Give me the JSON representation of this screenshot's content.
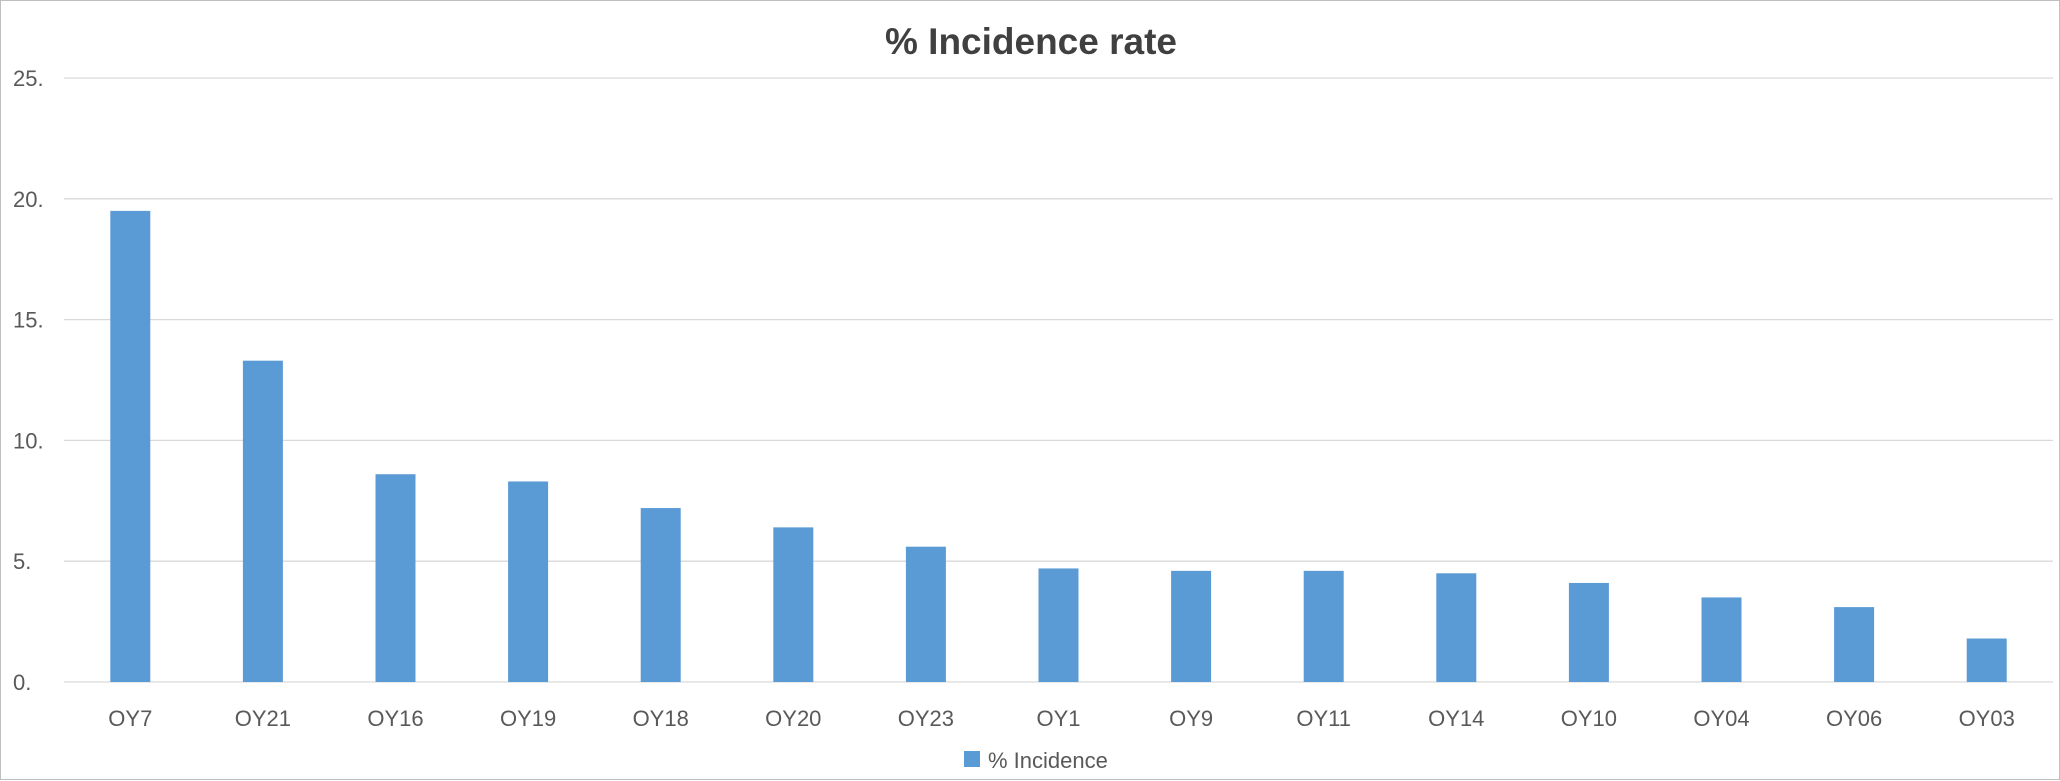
{
  "chart_data": {
    "type": "bar",
    "title": "% Incidence rate",
    "xlabel": "",
    "ylabel": "",
    "categories": [
      "OY7",
      "OY21",
      "OY16",
      "OY19",
      "OY18",
      "OY20",
      "OY23",
      "OY1",
      "OY9",
      "OY11",
      "OY14",
      "OY10",
      "OY04",
      "OY06",
      "OY03"
    ],
    "series": [
      {
        "name": "% Incidence",
        "color": "#5b9bd5",
        "values": [
          19.5,
          13.3,
          8.6,
          8.3,
          7.2,
          6.4,
          5.6,
          4.7,
          4.6,
          4.6,
          4.5,
          4.1,
          3.5,
          3.1,
          1.8
        ]
      }
    ],
    "ylim": [
      0,
      25
    ],
    "yticks": [
      0,
      5,
      10,
      15,
      20,
      25
    ],
    "ytick_labels": [
      "0.",
      "5.",
      "10.",
      "15.",
      "20.",
      "25."
    ],
    "grid": true,
    "gridline_color": "#d9d9d9",
    "legend_position": "bottom"
  }
}
